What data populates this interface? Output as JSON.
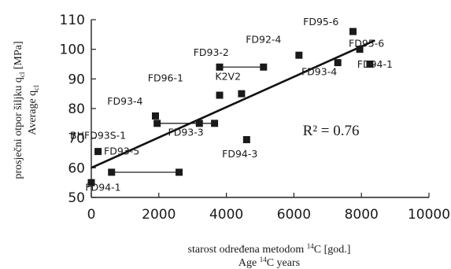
{
  "chart_data": {
    "type": "scatter",
    "xlabel_line1_pre": "starost određena metodom ",
    "xlabel_line1_sup": "14",
    "xlabel_line1_post": "C [god.]",
    "xlabel_line2_pre": "Age ",
    "xlabel_line2_sup": "14",
    "xlabel_line2_post": "C years",
    "ylabel_line1_pre": "prosječni otpor šiljku q",
    "ylabel_line1_sub": "cl",
    "ylabel_line1_post": " [MPa]",
    "ylabel_line2_pre": "Average q",
    "ylabel_line2_sub": "cl",
    "xlim": [
      0,
      10000
    ],
    "ylim": [
      50,
      110
    ],
    "xticks": [
      0,
      2000,
      4000,
      6000,
      8000,
      10000
    ],
    "yticks": [
      50,
      60,
      70,
      80,
      90,
      100,
      110
    ],
    "grid": false,
    "points": [
      {
        "x": 0,
        "y": 55
      },
      {
        "x": 200,
        "y": 65.5
      },
      {
        "x": 600,
        "y": 58.5
      },
      {
        "x": 2600,
        "y": 58.5
      },
      {
        "x": 1900,
        "y": 77.5
      },
      {
        "x": 1950,
        "y": 75
      },
      {
        "x": 3200,
        "y": 75
      },
      {
        "x": 3650,
        "y": 75
      },
      {
        "x": 3800,
        "y": 84.5
      },
      {
        "x": 3800,
        "y": 94
      },
      {
        "x": 4600,
        "y": 69.5
      },
      {
        "x": 4450,
        "y": 85
      },
      {
        "x": 5100,
        "y": 94
      },
      {
        "x": 6150,
        "y": 98
      },
      {
        "x": 7300,
        "y": 95.5
      },
      {
        "x": 7750,
        "y": 106
      },
      {
        "x": 7950,
        "y": 100
      },
      {
        "x": 8250,
        "y": 95
      }
    ],
    "range_bars": [
      {
        "x1": 600,
        "x2": 2600,
        "y": 58.5
      },
      {
        "x1": 1950,
        "x2": 3650,
        "y": 75
      },
      {
        "x1": 3800,
        "x2": 5100,
        "y": 94
      }
    ],
    "regression_line": {
      "x1": 0,
      "y1": 60,
      "x2": 8400,
      "y2": 103
    },
    "point_labels": [
      {
        "text": "FD94-1",
        "x": 350,
        "y": 52.3
      },
      {
        "text": "BHFD93S-1",
        "x": 200,
        "y": 69.8
      },
      {
        "text": "FD93-5",
        "x": 900,
        "y": 64.5
      },
      {
        "text": "FD93-4",
        "x": 1000,
        "y": 81.3
      },
      {
        "text": "FD93-3",
        "x": 2800,
        "y": 70.8
      },
      {
        "text": "FD96-1",
        "x": 2200,
        "y": 89.2
      },
      {
        "text": "K2V2",
        "x": 4050,
        "y": 89.7
      },
      {
        "text": "FD93-2",
        "x": 3550,
        "y": 97.8
      },
      {
        "text": "FD94-3",
        "x": 4400,
        "y": 63.5
      },
      {
        "text": "FD92-4",
        "x": 5100,
        "y": 102.2
      },
      {
        "text": "FD93-4",
        "x": 6750,
        "y": 91.3
      },
      {
        "text": "FD95-6",
        "x": 6800,
        "y": 108.2
      },
      {
        "text": "FD95-6",
        "x": 8150,
        "y": 100.8
      },
      {
        "text": "FD94-1",
        "x": 8400,
        "y": 93.8
      }
    ],
    "annotation": "R² = 0.76",
    "annotation_pos": {
      "x": 7100,
      "y": 71
    }
  }
}
